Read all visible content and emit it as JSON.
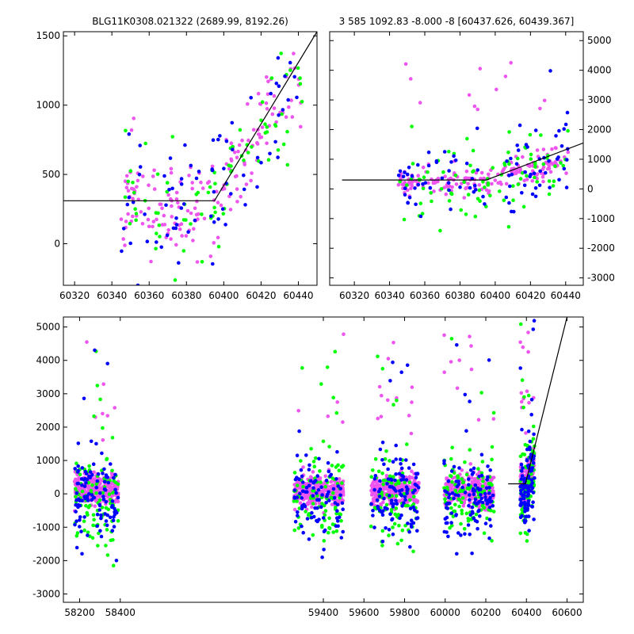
{
  "colors": {
    "green": "#00ff00",
    "blue": "#0000ff",
    "magenta": "#ee55ee",
    "line": "#000000"
  },
  "chart_data": [
    {
      "id": "top-left",
      "type": "scatter",
      "title": "BLG11K0308.021322 (2689.99, 8192.26)",
      "xlim": [
        60314,
        60450
      ],
      "ylim": [
        -300,
        1530
      ],
      "xticks": [
        60320,
        60340,
        60360,
        60380,
        60400,
        60420,
        60440
      ],
      "yticks": [
        0,
        500,
        1000,
        1500
      ],
      "yaxis_side": "left",
      "model_line": [
        [
          60314,
          310
        ],
        [
          60395,
          310
        ],
        [
          60450,
          1530
        ]
      ],
      "point_seed": 11,
      "point_x_range": [
        60345,
        60442
      ],
      "series": [
        {
          "color": "green",
          "n": 80
        },
        {
          "color": "blue",
          "n": 75
        },
        {
          "color": "magenta",
          "n": 170
        }
      ]
    },
    {
      "id": "top-right",
      "type": "scatter",
      "title": "3 585 1092.83 -8.000 -8 [60437.626, 60439.367]",
      "xlim": [
        60306,
        60450
      ],
      "ylim": [
        -3250,
        5300
      ],
      "xticks": [
        60320,
        60340,
        60360,
        60380,
        60400,
        60420,
        60440
      ],
      "yticks": [
        -3000,
        -2000,
        -1000,
        0,
        1000,
        2000,
        3000,
        4000,
        5000
      ],
      "yaxis_side": "right",
      "model_line": [
        [
          60313,
          300
        ],
        [
          60395,
          300
        ],
        [
          60450,
          1550
        ]
      ],
      "point_seed": 23,
      "point_x_range": [
        60345,
        60442
      ],
      "series": [
        {
          "color": "green",
          "n": 90
        },
        {
          "color": "blue",
          "n": 90
        },
        {
          "color": "magenta",
          "n": 200
        }
      ]
    },
    {
      "id": "bottom",
      "type": "scatter",
      "title": "",
      "xlim": [
        58120,
        60680
      ],
      "ylim": [
        -3250,
        5300
      ],
      "xticks": [
        58200,
        58400,
        59400,
        59600,
        59800,
        60000,
        60200,
        60400,
        60600
      ],
      "yticks": [
        -3000,
        -2000,
        -1000,
        0,
        1000,
        2000,
        3000,
        4000,
        5000
      ],
      "yaxis_side": "left",
      "model_line": [
        [
          60310,
          300
        ],
        [
          60395,
          300
        ],
        [
          60600,
          5300
        ]
      ],
      "point_seed": 37,
      "seasons": [
        [
          58175,
          58390
        ],
        [
          59255,
          59500
        ],
        [
          59635,
          59870
        ],
        [
          59995,
          60240
        ],
        [
          60370,
          60440
        ]
      ],
      "series": [
        {
          "color": "green",
          "n": 480
        },
        {
          "color": "blue",
          "n": 520
        },
        {
          "color": "magenta",
          "n": 1500
        }
      ]
    }
  ]
}
